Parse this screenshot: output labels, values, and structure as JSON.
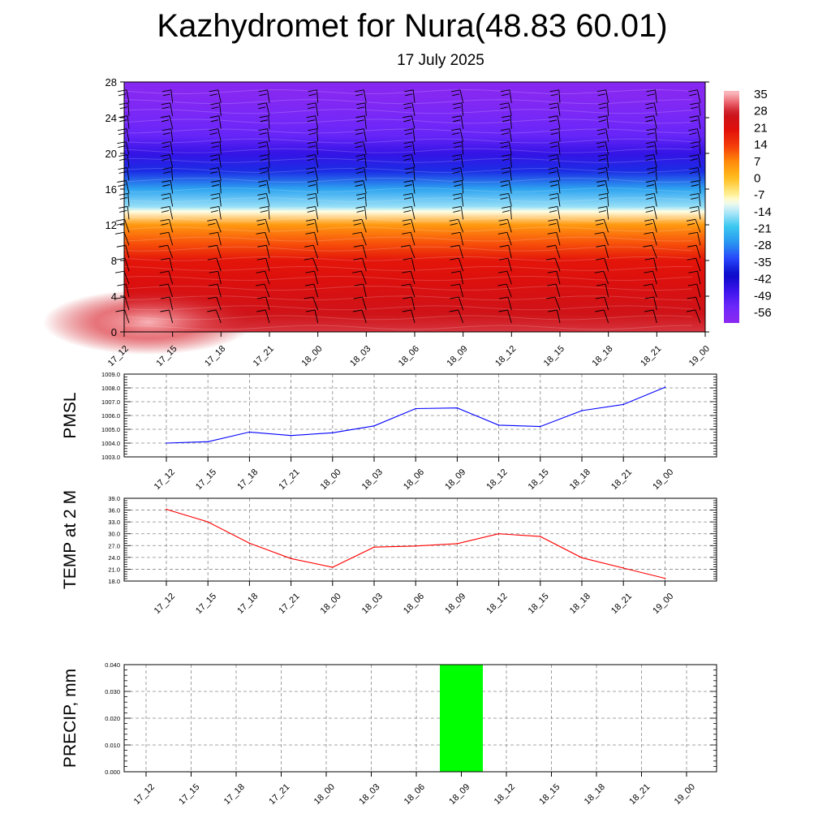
{
  "title": "Kazhydromet for Nura(48.83 60.01)",
  "subtitle": "17 July 2025",
  "time_labels": [
    "17_12",
    "17_15",
    "17_18",
    "17_21",
    "18_00",
    "18_03",
    "18_06",
    "18_09",
    "18_12",
    "18_15",
    "18_18",
    "18_21",
    "19_00"
  ],
  "colors": {
    "pmsl_line": "#0000ff",
    "temp_line": "#ff0000",
    "precip_bar": "#00ff00",
    "grid": "#888888"
  },
  "chart_data": [
    {
      "type": "heatmap",
      "name": "vertical temperature section",
      "x": [
        "17_12",
        "17_15",
        "17_18",
        "17_21",
        "18_00",
        "18_03",
        "18_06",
        "18_09",
        "18_12",
        "18_15",
        "18_18",
        "18_21",
        "19_00"
      ],
      "y_ticks": [
        0,
        4,
        8,
        12,
        16,
        20,
        24,
        28
      ],
      "ylim": [
        0,
        28
      ],
      "colorbar": {
        "labels": [
          "35",
          "28",
          "21",
          "14",
          "7",
          "0",
          "-7",
          "-14",
          "-21",
          "-28",
          "-35",
          "-42",
          "-49",
          "-56"
        ],
        "range": [
          -63,
          38
        ]
      },
      "temperature_profile": [
        {
          "level": 0,
          "value": 30
        },
        {
          "level": 2,
          "value": 26
        },
        {
          "level": 4,
          "value": 24
        },
        {
          "level": 6,
          "value": 22
        },
        {
          "level": 8,
          "value": 20
        },
        {
          "level": 10,
          "value": 12
        },
        {
          "level": 12,
          "value": 5
        },
        {
          "level": 13.5,
          "value": -10
        },
        {
          "level": 14,
          "value": -16
        },
        {
          "level": 16,
          "value": -26
        },
        {
          "level": 18,
          "value": -38
        },
        {
          "level": 20,
          "value": -48
        },
        {
          "level": 22,
          "value": -55
        },
        {
          "level": 24,
          "value": -58
        },
        {
          "level": 26,
          "value": -61
        },
        {
          "level": 28,
          "value": -62
        }
      ],
      "wind_barbs": true
    },
    {
      "type": "line",
      "ylabel": "PMSL",
      "x": [
        "17_12",
        "17_15",
        "17_18",
        "17_21",
        "18_00",
        "18_03",
        "18_06",
        "18_09",
        "18_12",
        "18_15",
        "18_18",
        "18_21",
        "19_00"
      ],
      "series": [
        {
          "values": [
            1004.0,
            1004.1,
            1004.8,
            1004.55,
            1004.75,
            1005.25,
            1006.5,
            1006.55,
            1005.3,
            1005.2,
            1006.35,
            1006.8,
            1008.05
          ]
        }
      ],
      "yticks": [
        "1009.0",
        "1008.0",
        "1007.0",
        "1006.0",
        "1005.0",
        "1004.0",
        "1003.0"
      ],
      "ylim": [
        1003,
        1009
      ],
      "grid": true
    },
    {
      "type": "line",
      "ylabel": "TEMP at 2 M",
      "x": [
        "17_12",
        "17_15",
        "17_18",
        "17_21",
        "18_00",
        "18_03",
        "18_06",
        "18_09",
        "18_12",
        "18_15",
        "18_18",
        "18_21",
        "19_00"
      ],
      "series": [
        {
          "values": [
            36.2,
            33.0,
            27.6,
            23.7,
            21.5,
            26.6,
            26.9,
            27.5,
            30.0,
            29.3,
            23.9,
            21.3,
            18.7
          ]
        }
      ],
      "yticks": [
        "39.0",
        "36.0",
        "33.0",
        "30.0",
        "27.0",
        "24.0",
        "21.0",
        "18.0"
      ],
      "ylim": [
        18,
        39
      ],
      "grid": true
    },
    {
      "type": "bar",
      "ylabel": "PRECIP, mm",
      "categories": [
        "17_12",
        "17_15",
        "17_18",
        "17_21",
        "18_00",
        "18_03",
        "18_06",
        "18_09",
        "18_12",
        "18_15",
        "18_18",
        "18_21",
        "19_00"
      ],
      "values": [
        0,
        0,
        0,
        0,
        0,
        0,
        0,
        0.04,
        0,
        0,
        0,
        0,
        0
      ],
      "yticks": [
        "0.040",
        "0.030",
        "0.020",
        "0.010",
        "0.000"
      ],
      "ylim": [
        0,
        0.04
      ],
      "grid": true
    }
  ]
}
